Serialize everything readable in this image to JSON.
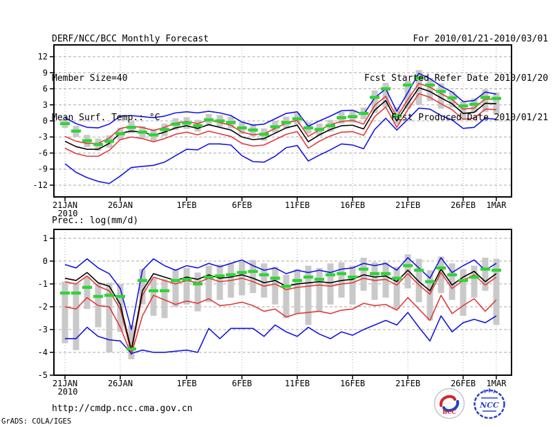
{
  "header": {
    "title": "DERF/NCC/BCC Monthly Forecast",
    "member_size": "Member Size=40",
    "for_period": "For 2010/01/21-2010/03/01",
    "refer_date": "Fcst Started Refer Date 2010/01/20",
    "produced_date": "Fcst Produced Date 2010/01/21"
  },
  "footer": {
    "url": "http://cmdp.ncc.cma.gov.cn",
    "credit": "GrADS: COLA/IGES",
    "logos": [
      {
        "name": "bcc-logo",
        "label": "BCC"
      },
      {
        "name": "ncc-logo",
        "label": "NCC"
      }
    ]
  },
  "colors": {
    "blue": "#1414e0",
    "red": "#e03a3a",
    "black": "#000000",
    "green": "#2fd435",
    "bar": "#c9c9c9",
    "grid": "#a9a9a9",
    "frame": "#000000"
  },
  "chart_data": [
    {
      "type": "line",
      "title": "Mean Surf. Temp.: °C",
      "x_tick_labels": [
        "21JAN",
        "26JAN",
        "1FEB",
        "6FEB",
        "11FEB",
        "16FEB",
        "21FEB",
        "26FEB",
        "1MAR"
      ],
      "x_tick_days": [
        0,
        5,
        11,
        16,
        21,
        26,
        31,
        36,
        39
      ],
      "x_year_label": "2010",
      "n_days": 40,
      "dates": [
        "2010-01-21",
        "2010-01-22",
        "2010-01-23",
        "2010-01-24",
        "2010-01-25",
        "2010-01-26",
        "2010-01-27",
        "2010-01-28",
        "2010-01-29",
        "2010-01-30",
        "2010-01-31",
        "2010-02-01",
        "2010-02-02",
        "2010-02-03",
        "2010-02-04",
        "2010-02-05",
        "2010-02-06",
        "2010-02-07",
        "2010-02-08",
        "2010-02-09",
        "2010-02-10",
        "2010-02-11",
        "2010-02-12",
        "2010-02-13",
        "2010-02-14",
        "2010-02-15",
        "2010-02-16",
        "2010-02-17",
        "2010-02-18",
        "2010-02-19",
        "2010-02-20",
        "2010-02-21",
        "2010-02-22",
        "2010-02-23",
        "2010-02-24",
        "2010-02-25",
        "2010-02-26",
        "2010-02-27",
        "2010-02-28",
        "2010-03-01"
      ],
      "ylim": [
        -14.2,
        14.2
      ],
      "yticks": [
        12,
        9,
        6,
        3,
        0,
        -3,
        -6,
        -9,
        -12
      ],
      "grid": true,
      "legend": "none",
      "series": [
        {
          "name": "ensemble-max",
          "color": "blue",
          "values": [
            0.6,
            -0.5,
            -1.2,
            -1.3,
            -0.6,
            0.9,
            1.0,
            0.8,
            0.6,
            0.9,
            1.5,
            1.7,
            1.5,
            1.8,
            1.5,
            1.0,
            -0.2,
            -0.8,
            -0.6,
            0.4,
            1.4,
            1.7,
            -1.0,
            0.0,
            0.9,
            1.9,
            2.0,
            1.2,
            4.3,
            6.0,
            1.8,
            5.3,
            8.9,
            7.9,
            6.5,
            5.4,
            3.6,
            3.8,
            5.4,
            5.0
          ]
        },
        {
          "name": "upper-quartile",
          "color": "red",
          "values": [
            -2.9,
            -3.8,
            -4.2,
            -4.2,
            -3.2,
            -1.4,
            -1.0,
            -1.2,
            -1.8,
            -1.2,
            -0.4,
            -0.1,
            -0.5,
            0.2,
            -0.3,
            -0.8,
            -2.1,
            -2.6,
            -2.4,
            -1.4,
            -0.4,
            0.1,
            -2.9,
            -1.7,
            -0.7,
            -0.1,
            0.1,
            -0.6,
            2.9,
            4.6,
            0.7,
            4.0,
            7.0,
            6.3,
            5.1,
            4.0,
            2.2,
            2.4,
            4.1,
            4.0
          ]
        },
        {
          "name": "ensemble-mean",
          "color": "black",
          "values": [
            -3.8,
            -4.8,
            -5.3,
            -5.3,
            -4.2,
            -2.3,
            -1.9,
            -2.1,
            -2.7,
            -2.1,
            -1.3,
            -0.9,
            -1.4,
            -0.7,
            -1.2,
            -1.7,
            -3.0,
            -3.5,
            -3.3,
            -2.3,
            -1.3,
            -0.8,
            -3.9,
            -2.6,
            -1.6,
            -0.9,
            -0.8,
            -1.5,
            2.0,
            3.8,
            0.0,
            3.2,
            6.2,
            5.5,
            4.3,
            3.2,
            1.4,
            1.6,
            3.3,
            3.2
          ]
        },
        {
          "name": "lower-quartile",
          "color": "red",
          "values": [
            -5.1,
            -6.1,
            -6.6,
            -6.6,
            -5.5,
            -3.5,
            -3.0,
            -3.3,
            -3.9,
            -3.3,
            -2.5,
            -2.1,
            -2.6,
            -1.9,
            -2.4,
            -2.9,
            -4.2,
            -4.7,
            -4.5,
            -3.5,
            -2.5,
            -2.0,
            -5.1,
            -3.8,
            -2.8,
            -2.1,
            -2.0,
            -2.7,
            0.8,
            2.6,
            -1.2,
            2.1,
            5.1,
            4.4,
            3.2,
            2.1,
            0.3,
            0.5,
            2.2,
            2.1
          ]
        },
        {
          "name": "ensemble-min",
          "color": "blue",
          "values": [
            -8.0,
            -9.6,
            -10.6,
            -11.3,
            -11.7,
            -10.3,
            -8.7,
            -8.5,
            -8.3,
            -7.7,
            -6.5,
            -5.3,
            -5.4,
            -4.3,
            -4.3,
            -4.5,
            -6.5,
            -7.6,
            -7.7,
            -6.6,
            -5.0,
            -4.6,
            -7.5,
            -6.4,
            -5.4,
            -4.3,
            -4.5,
            -5.2,
            -1.6,
            0.5,
            -1.7,
            0.3,
            2.4,
            2.2,
            1.0,
            0.2,
            -1.4,
            -1.2,
            0.5,
            0.3
          ]
        }
      ],
      "obs_dashes": {
        "name": "observation-green-dashes",
        "values": [
          -0.5,
          -1.9,
          -3.7,
          -4.4,
          -3.8,
          -2.4,
          -1.2,
          -2.1,
          -2.6,
          -1.6,
          -0.6,
          -0.4,
          -0.9,
          0.2,
          0.0,
          -0.3,
          -1.3,
          -1.7,
          -2.5,
          -1.1,
          -0.3,
          0.4,
          -1.3,
          -1.6,
          -0.9,
          0.6,
          0.8,
          1.4,
          4.4,
          6.0,
          0.9,
          6.7,
          8.0,
          6.7,
          5.5,
          4.3,
          2.8,
          3.1,
          4.4,
          4.2
        ]
      },
      "gray_bars": {
        "top": [
          0.3,
          -0.9,
          -2.6,
          -3.3,
          -2.7,
          -1.3,
          -0.1,
          -1.0,
          -1.5,
          -0.5,
          0.5,
          0.7,
          0.2,
          1.3,
          1.1,
          0.8,
          -0.2,
          -0.6,
          -1.4,
          0.0,
          0.8,
          1.5,
          -0.2,
          -0.5,
          0.2,
          1.7,
          1.9,
          2.5,
          5.7,
          7.1,
          2.6,
          7.5,
          9.5,
          8.0,
          7.0,
          5.5,
          3.6,
          4.2,
          5.9,
          5.3
        ],
        "bottom": [
          -1.3,
          -3.0,
          -4.9,
          -5.6,
          -5.0,
          -3.6,
          -2.3,
          -3.2,
          -3.8,
          -2.8,
          -1.7,
          -1.5,
          -2.0,
          -0.9,
          -1.1,
          -1.4,
          -2.4,
          -2.9,
          -3.7,
          -2.2,
          -1.4,
          -0.7,
          -2.4,
          -2.8,
          -2.0,
          -0.5,
          -0.3,
          0.3,
          1.5,
          2.6,
          -0.6,
          2.3,
          3.0,
          3.7,
          2.3,
          2.5,
          0.3,
          1.6,
          1.7,
          1.2
        ]
      }
    },
    {
      "type": "line",
      "title": "Prec.: log(mm/d)",
      "x_tick_labels": [
        "21JAN",
        "26JAN",
        "1FEB",
        "6FEB",
        "11FEB",
        "16FEB",
        "21FEB",
        "26FEB",
        "1MAR"
      ],
      "x_tick_days": [
        0,
        5,
        11,
        16,
        21,
        26,
        31,
        36,
        39
      ],
      "x_year_label": "2010",
      "n_days": 40,
      "ylim": [
        -5.0,
        1.39
      ],
      "yticks": [
        1,
        0,
        -1,
        -2,
        -3,
        -4,
        -5
      ],
      "grid": true,
      "legend": "none",
      "series": [
        {
          "name": "ensemble-max",
          "color": "blue",
          "values": [
            -0.15,
            -0.3,
            0.1,
            -0.3,
            -0.55,
            -1.2,
            -3.0,
            -0.4,
            0.1,
            -0.2,
            -0.4,
            -0.2,
            -0.3,
            -0.1,
            -0.25,
            -0.1,
            0.05,
            -0.2,
            -0.4,
            -0.3,
            -0.55,
            -0.4,
            -0.5,
            -0.4,
            -0.5,
            -0.35,
            -0.3,
            -0.1,
            -0.2,
            -0.1,
            -0.4,
            0.15,
            -0.3,
            -0.75,
            0.15,
            -0.5,
            -0.2,
            0.05,
            -0.4,
            -0.1
          ]
        },
        {
          "name": "upper-quartile",
          "color": "red",
          "values": [
            -0.9,
            -1.0,
            -0.65,
            -1.1,
            -1.3,
            -2.1,
            -4.0,
            -1.5,
            -0.7,
            -0.85,
            -1.0,
            -0.85,
            -0.95,
            -0.75,
            -0.9,
            -0.85,
            -0.75,
            -0.9,
            -1.1,
            -1.0,
            -1.25,
            -1.15,
            -1.1,
            -1.05,
            -1.1,
            -1.0,
            -0.95,
            -0.75,
            -0.85,
            -0.8,
            -1.05,
            -0.55,
            -1.05,
            -1.45,
            -0.5,
            -1.2,
            -0.85,
            -0.6,
            -1.05,
            -0.7
          ]
        },
        {
          "name": "ensemble-mean",
          "color": "black",
          "values": [
            -0.75,
            -0.85,
            -0.5,
            -0.95,
            -1.1,
            -1.9,
            -3.9,
            -1.3,
            -0.55,
            -0.7,
            -0.85,
            -0.7,
            -0.8,
            -0.6,
            -0.75,
            -0.7,
            -0.6,
            -0.75,
            -0.95,
            -0.85,
            -1.1,
            -1.0,
            -0.95,
            -0.9,
            -0.95,
            -0.85,
            -0.8,
            -0.6,
            -0.7,
            -0.65,
            -0.9,
            -0.4,
            -0.9,
            -1.3,
            -0.35,
            -1.05,
            -0.7,
            -0.45,
            -0.9,
            -0.55
          ]
        },
        {
          "name": "lower-quartile",
          "color": "red",
          "values": [
            -2.0,
            -2.1,
            -1.6,
            -1.95,
            -2.0,
            -2.9,
            -4.1,
            -2.4,
            -1.5,
            -1.7,
            -1.9,
            -1.75,
            -1.85,
            -1.65,
            -1.95,
            -1.9,
            -1.8,
            -1.95,
            -2.2,
            -2.1,
            -2.45,
            -2.3,
            -2.25,
            -2.2,
            -2.3,
            -2.15,
            -2.1,
            -1.85,
            -1.95,
            -1.9,
            -2.15,
            -1.6,
            -2.1,
            -2.6,
            -1.5,
            -2.3,
            -1.95,
            -1.65,
            -2.2,
            -1.7
          ]
        },
        {
          "name": "ensemble-min",
          "color": "blue",
          "values": [
            -3.4,
            -3.4,
            -2.9,
            -3.3,
            -3.45,
            -3.5,
            -4.05,
            -3.9,
            -4.0,
            -4.0,
            -3.95,
            -3.9,
            -4.0,
            -2.95,
            -3.4,
            -2.95,
            -2.95,
            -2.95,
            -3.3,
            -2.8,
            -3.1,
            -3.3,
            -2.9,
            -3.2,
            -3.4,
            -3.1,
            -3.25,
            -3.0,
            -2.8,
            -2.6,
            -2.8,
            -2.25,
            -2.9,
            -3.5,
            -2.4,
            -3.1,
            -2.7,
            -2.55,
            -2.7,
            -2.4
          ]
        }
      ],
      "obs_dashes": {
        "name": "observation-green-dashes",
        "values": [
          -1.4,
          -1.4,
          -1.15,
          -1.55,
          -1.5,
          -1.55,
          -3.85,
          -0.85,
          -1.3,
          -1.3,
          -0.85,
          -0.8,
          -1.0,
          -0.7,
          -0.65,
          -0.6,
          -0.5,
          -0.45,
          -0.6,
          -0.75,
          -1.1,
          -0.85,
          -0.7,
          -0.8,
          -0.6,
          -0.55,
          -0.7,
          -0.35,
          -0.55,
          -0.55,
          -0.75,
          -0.2,
          -0.4,
          -0.9,
          -0.3,
          -0.6,
          -0.85,
          -0.7,
          -0.35,
          -0.4
        ]
      },
      "gray_bars": {
        "top": [
          -0.9,
          -1.0,
          -0.7,
          -1.0,
          -0.95,
          -1.0,
          -2.8,
          -0.35,
          -0.75,
          -0.8,
          -0.35,
          -0.3,
          -0.5,
          -0.2,
          -0.15,
          -0.1,
          0.0,
          0.05,
          -0.1,
          -0.25,
          -0.6,
          -0.35,
          -0.2,
          -0.3,
          -0.1,
          -0.05,
          -0.2,
          0.15,
          -0.05,
          -0.05,
          -0.25,
          0.3,
          0.1,
          -0.4,
          0.2,
          -0.1,
          -0.35,
          -0.2,
          0.15,
          0.1
        ],
        "bottom": [
          -3.6,
          -3.9,
          -2.1,
          -2.9,
          -4.0,
          -3.1,
          -4.3,
          -1.9,
          -2.4,
          -2.5,
          -2.0,
          -1.9,
          -2.2,
          -1.8,
          -1.7,
          -1.6,
          -1.5,
          -1.4,
          -1.6,
          -1.9,
          -2.5,
          -2.3,
          -2.8,
          -2.2,
          -1.9,
          -1.6,
          -1.9,
          -1.3,
          -1.7,
          -1.6,
          -2.1,
          -1.2,
          -1.8,
          -2.6,
          -1.4,
          -1.7,
          -2.4,
          -1.6,
          -1.3,
          -2.8
        ]
      }
    }
  ]
}
